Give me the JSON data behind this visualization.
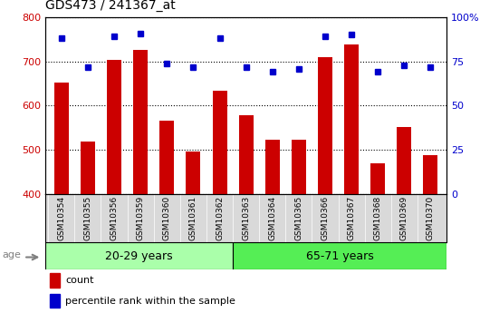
{
  "title": "GDS473 / 241367_at",
  "samples": [
    "GSM10354",
    "GSM10355",
    "GSM10356",
    "GSM10359",
    "GSM10360",
    "GSM10361",
    "GSM10362",
    "GSM10363",
    "GSM10364",
    "GSM10365",
    "GSM10366",
    "GSM10367",
    "GSM10368",
    "GSM10369",
    "GSM10370"
  ],
  "counts": [
    653,
    519,
    703,
    726,
    565,
    497,
    634,
    578,
    522,
    522,
    710,
    738,
    469,
    551,
    488
  ],
  "percentiles": [
    88,
    72,
    89,
    91,
    74,
    72,
    88,
    72,
    69,
    71,
    89,
    90,
    69,
    73,
    72
  ],
  "group1_label": "20-29 years",
  "group2_label": "65-71 years",
  "group1_count": 7,
  "group2_count": 8,
  "ylim_left": [
    400,
    800
  ],
  "ylim_right": [
    0,
    100
  ],
  "yticks_left": [
    400,
    500,
    600,
    700,
    800
  ],
  "yticks_right": [
    0,
    25,
    50,
    75,
    100
  ],
  "bar_color": "#cc0000",
  "dot_color": "#0000cc",
  "group1_bg": "#aaffaa",
  "group2_bg": "#55ee55",
  "axis_bg": "#d9d9d9",
  "plot_bg": "#ffffff",
  "legend_bar_label": "count",
  "legend_dot_label": "percentile rank within the sample",
  "age_label": "age"
}
